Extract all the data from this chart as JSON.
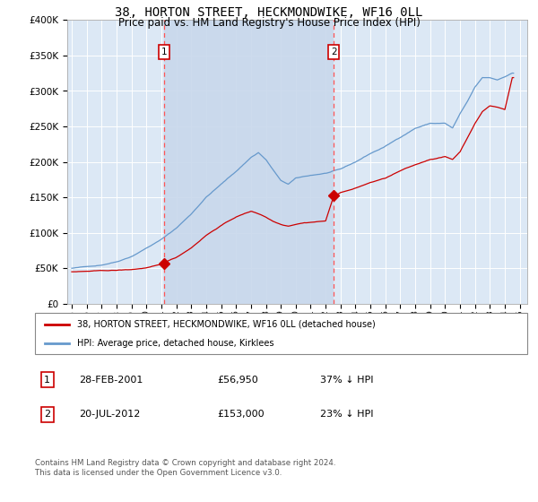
{
  "title": "38, HORTON STREET, HECKMONDWIKE, WF16 0LL",
  "subtitle": "Price paid vs. HM Land Registry's House Price Index (HPI)",
  "title_fontsize": 10,
  "subtitle_fontsize": 8.5,
  "background_color": "#dce8f5",
  "plot_bg_color": "#dce8f5",
  "ylim": [
    0,
    400000
  ],
  "yticks": [
    0,
    50000,
    100000,
    150000,
    200000,
    250000,
    300000,
    350000,
    400000
  ],
  "ytick_labels": [
    "£0",
    "£50K",
    "£100K",
    "£150K",
    "£200K",
    "£250K",
    "£300K",
    "£350K",
    "£400K"
  ],
  "xlim_start": 1994.7,
  "xlim_end": 2025.5,
  "xtick_years": [
    1995,
    1996,
    1997,
    1998,
    1999,
    2000,
    2001,
    2002,
    2003,
    2004,
    2005,
    2006,
    2007,
    2008,
    2009,
    2010,
    2011,
    2012,
    2013,
    2014,
    2015,
    2016,
    2017,
    2018,
    2019,
    2020,
    2021,
    2022,
    2023,
    2024,
    2025
  ],
  "purchase1_x": 2001.167,
  "purchase1_y": 56950,
  "purchase1_label": "1",
  "purchase1_date": "28-FEB-2001",
  "purchase1_price": "£56,950",
  "purchase1_hpi": "37% ↓ HPI",
  "purchase2_x": 2012.55,
  "purchase2_y": 153000,
  "purchase2_label": "2",
  "purchase2_date": "20-JUL-2012",
  "purchase2_price": "£153,000",
  "purchase2_hpi": "23% ↓ HPI",
  "red_line_color": "#cc0000",
  "blue_line_color": "#6699cc",
  "shade_color": "#c8d8ec",
  "dashed_line_color": "#ff5555",
  "marker_box_color": "#cc0000",
  "legend_line1": "38, HORTON STREET, HECKMONDWIKE, WF16 0LL (detached house)",
  "legend_line2": "HPI: Average price, detached house, Kirklees",
  "footer_text": "Contains HM Land Registry data © Crown copyright and database right 2024.\nThis data is licensed under the Open Government Licence v3.0."
}
